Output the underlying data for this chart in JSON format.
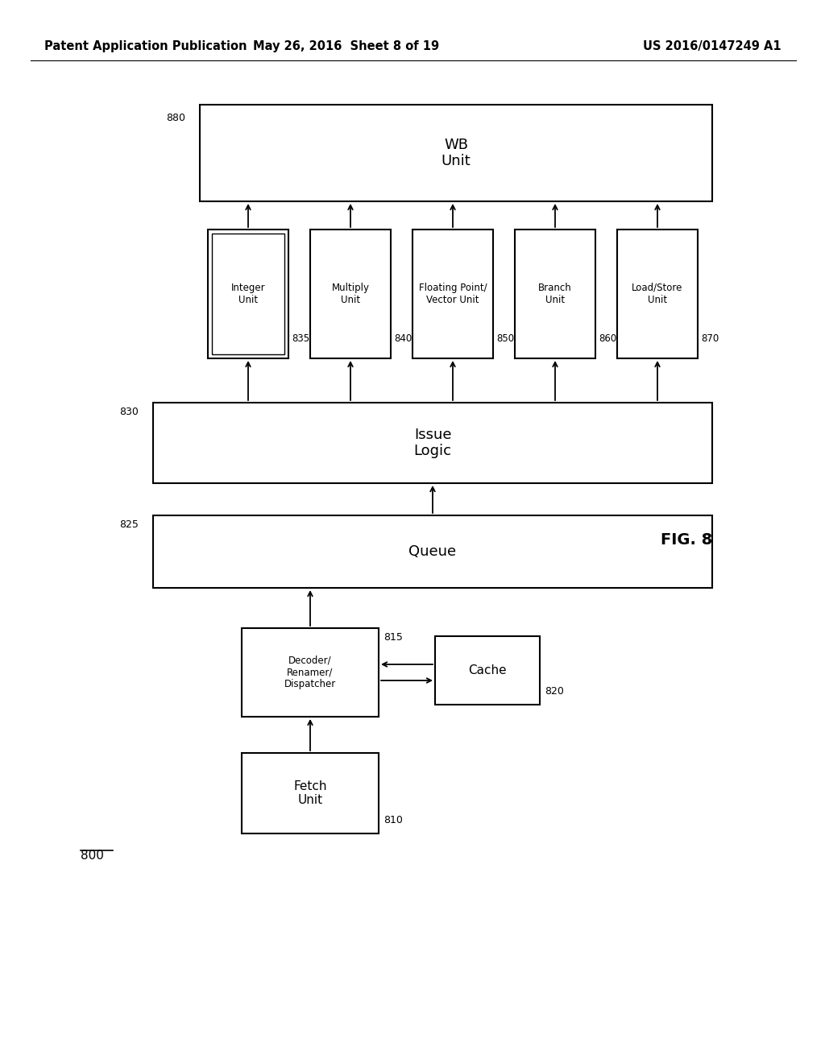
{
  "header_left": "Patent Application Publication",
  "header_mid": "May 26, 2016  Sheet 8 of 19",
  "header_right": "US 2016/0147249 A1",
  "fig_label": "FIG. 8",
  "diagram_label": "800",
  "bg_color": "#ffffff"
}
